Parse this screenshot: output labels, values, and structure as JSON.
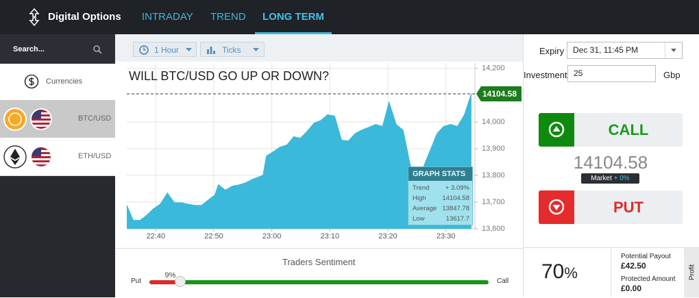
{
  "header": {
    "brand": "Digital Options",
    "tabs": [
      "INTRADAY",
      "TREND",
      "LONG TERM"
    ],
    "active_tab": 2
  },
  "sidebar": {
    "search": "Search...",
    "category": "Currencies",
    "assets": [
      "BTC/USD",
      "ETH/USD"
    ],
    "selected_asset": 0
  },
  "toolbar": {
    "interval": "1 Hour",
    "chart_style": "Ticks"
  },
  "chart_data": {
    "type": "area",
    "title": "WILL BTC/USD GO UP OR DOWN?",
    "x": [
      1355,
      1356.1,
      1357.3,
      1358.5,
      1359.6,
      1360.8,
      1362,
      1363.2,
      1364.4,
      1365.5,
      1366.7,
      1367.9,
      1369.1,
      1370.2,
      1370.8,
      1372,
      1373.2,
      1374.4,
      1375.5,
      1376.7,
      1377.9,
      1378.5,
      1379.1,
      1380.2,
      1381.4,
      1382.6,
      1383.8,
      1384.9,
      1386.1,
      1387.3,
      1388.5,
      1389.6,
      1390.8,
      1392,
      1393.2,
      1394.4,
      1395.5,
      1396.7,
      1397.9,
      1399.1,
      1400.2,
      1401.4,
      1402.6,
      1403.8,
      1404.9,
      1406.1,
      1407.3,
      1408.5,
      1409.6,
      1410.8,
      1412,
      1413.2,
      1414.4
    ],
    "values": [
      13687,
      13631,
      13631,
      13651,
      13674,
      13692,
      13733,
      13697,
      13697,
      13692,
      13687,
      13687,
      13708,
      13726,
      13764,
      13744,
      13759,
      13764,
      13772,
      13785,
      13795,
      13800,
      13872,
      13887,
      13905,
      13913,
      13944,
      13938,
      13964,
      13995,
      14005,
      14026,
      14021,
      13931,
      13928,
      13956,
      13969,
      13979,
      13990,
      13982,
      14072,
      13990,
      13969,
      13841,
      13777,
      13828,
      13892,
      13956,
      13982,
      13990,
      13982,
      14026,
      14104.58
    ],
    "color": "#3bb9da",
    "xlim": [
      1355,
      1415
    ],
    "xticks": [
      {
        "value": 1360,
        "label": "22:40"
      },
      {
        "value": 1370,
        "label": "22:50"
      },
      {
        "value": 1380,
        "label": "23:00"
      },
      {
        "value": 1390,
        "label": "23:10"
      },
      {
        "value": 1400,
        "label": "23:20"
      },
      {
        "value": 1410,
        "label": "23:30"
      }
    ],
    "ylim": [
      13600,
      14220
    ],
    "yticks": [
      {
        "value": 13600,
        "label": "13,600"
      },
      {
        "value": 13700,
        "label": "13,700"
      },
      {
        "value": 13800,
        "label": "13,800"
      },
      {
        "value": 13900,
        "label": "13,900"
      },
      {
        "value": 14000,
        "label": "14,000"
      },
      {
        "value": 14200,
        "label": "14,200"
      }
    ],
    "grid": true,
    "current": 14104.58
  },
  "graph_stats": {
    "title": "GRAPH STATS",
    "rows": [
      [
        "Trend",
        "+ 3.09%"
      ],
      [
        "High",
        "14104.58"
      ],
      [
        "Average",
        "13847.78"
      ],
      [
        "Low",
        "13617.7"
      ]
    ]
  },
  "trade": {
    "expiry_label": "Expiry",
    "expiry": "Dec 31, 11:45 PM",
    "investment_label": "Investment",
    "investment": "25",
    "currency": "Gbp",
    "call": "CALL",
    "price": "14104.58",
    "market": "Market",
    "market_change": "+ 0%",
    "put": "PUT"
  },
  "sentiment": {
    "title": "Traders Sentiment",
    "put_label": "Put",
    "call_label": "Call",
    "put": {
      "value": 9,
      "label": "9%"
    }
  },
  "payout": {
    "percent": "70",
    "unit": "%",
    "potential_label": "Potential Payout",
    "potential": "£42.50",
    "protected_label": "Protected Amount",
    "protected": "£0.00",
    "profit_label": "Profit"
  }
}
